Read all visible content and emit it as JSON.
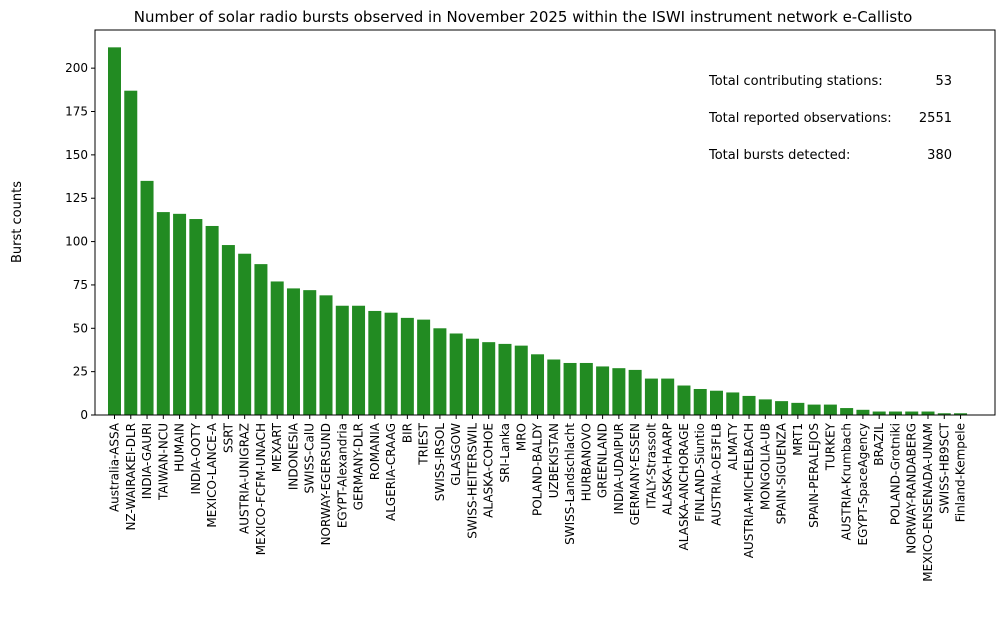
{
  "chart_data": {
    "type": "bar",
    "title": "Number of solar radio bursts observed in November 2025 within the ISWI instrument network e-Callisto",
    "xlabel": "",
    "ylabel": "Burst counts",
    "ylim": [
      0,
      222
    ],
    "yticks": [
      0,
      25,
      50,
      75,
      100,
      125,
      150,
      175,
      200
    ],
    "bar_color": "#228b22",
    "categories": [
      "Australia-ASSA",
      "NZ-WAIRAKEI-DLR",
      "INDIA-GAURI",
      "TAIWAN-NCU",
      "HUMAIN",
      "INDIA-OOTY",
      "MEXICO-LANCE-A",
      "SSRT",
      "AUSTRIA-UNIGRAZ",
      "MEXICO-FCFM-UNACH",
      "MEXART",
      "INDONESIA",
      "SWISS-CalU",
      "NORWAY-EGERSUND",
      "EGYPT-Alexandria",
      "GERMANY-DLR",
      "ROMANIA",
      "ALGERIA-CRAAG",
      "BIR",
      "TRIEST",
      "SWISS-IRSOL",
      "GLASGOW",
      "SWISS-HEITERSWIL",
      "ALASKA-COHOE",
      "SRI-Lanka",
      "MRO",
      "POLAND-BALDY",
      "UZBEKISTAN",
      "SWISS-Landschlacht",
      "HURBANOVO",
      "GREENLAND",
      "INDIA-UDAIPUR",
      "GERMANY-ESSEN",
      "ITALY-Strassolt",
      "ALASKA-HAARP",
      "ALASKA-ANCHORAGE",
      "FINLAND-Siuntio",
      "AUSTRIA-OE3FLB",
      "ALMATY",
      "AUSTRIA-MICHELBACH",
      "MONGOLIA-UB",
      "SPAIN-SIGUENZA",
      "MRT1",
      "SPAIN-PERALEJOS",
      "TURKEY",
      "AUSTRIA-Krumbach",
      "EGYPT-SpaceAgency",
      "BRAZIL",
      "POLAND-Grotniki",
      "NORWAY-RANDABERG",
      "MEXICO-ENSENADA-UNAM",
      "SWISS-HB9SCT",
      "Finland-Kempele"
    ],
    "values": [
      212,
      187,
      135,
      117,
      116,
      113,
      109,
      98,
      93,
      87,
      77,
      73,
      72,
      69,
      63,
      63,
      60,
      59,
      56,
      55,
      50,
      47,
      44,
      42,
      41,
      40,
      35,
      32,
      30,
      30,
      28,
      27,
      26,
      21,
      21,
      17,
      15,
      14,
      13,
      11,
      9,
      8,
      7,
      6,
      6,
      4,
      3,
      2,
      2,
      2,
      2,
      1,
      1
    ],
    "annotations": [
      {
        "label": "Total contributing stations:",
        "value": "53"
      },
      {
        "label": "Total reported observations:",
        "value": "2551"
      },
      {
        "label": "Total bursts detected:",
        "value": "380"
      }
    ]
  }
}
